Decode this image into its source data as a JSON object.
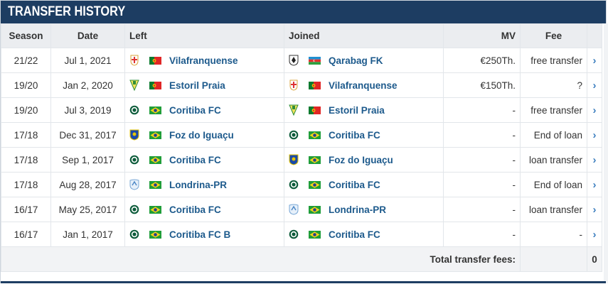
{
  "header": {
    "title": "TRANSFER HISTORY"
  },
  "columns": {
    "season": "Season",
    "date": "Date",
    "left": "Left",
    "joined": "Joined",
    "mv": "MV",
    "fee": "Fee"
  },
  "rows": [
    {
      "season": "21/22",
      "date": "Jul 1, 2021",
      "left": {
        "name": "Vilafranquense",
        "flag": "portugal",
        "crest": "vilafranquense-crest"
      },
      "joined": {
        "name": "Qarabag FK",
        "flag": "azerbaijan",
        "crest": "qarabag-crest"
      },
      "mv": "€250Th.",
      "fee": "free transfer"
    },
    {
      "season": "19/20",
      "date": "Jan 2, 2020",
      "left": {
        "name": "Estoril Praia",
        "flag": "portugal",
        "crest": "estoril-crest"
      },
      "joined": {
        "name": "Vilafranquense",
        "flag": "portugal",
        "crest": "vilafranquense-crest"
      },
      "mv": "€150Th.",
      "fee": "?"
    },
    {
      "season": "19/20",
      "date": "Jul 3, 2019",
      "left": {
        "name": "Coritiba FC",
        "flag": "brazil",
        "crest": "coritiba-crest"
      },
      "joined": {
        "name": "Estoril Praia",
        "flag": "portugal",
        "crest": "estoril-crest"
      },
      "mv": "-",
      "fee": "free transfer"
    },
    {
      "season": "17/18",
      "date": "Dec 31, 2017",
      "left": {
        "name": "Foz do Iguaçu",
        "flag": "brazil",
        "crest": "foz-crest"
      },
      "joined": {
        "name": "Coritiba FC",
        "flag": "brazil",
        "crest": "coritiba-crest"
      },
      "mv": "-",
      "fee": "End of loan"
    },
    {
      "season": "17/18",
      "date": "Sep 1, 2017",
      "left": {
        "name": "Coritiba FC",
        "flag": "brazil",
        "crest": "coritiba-crest"
      },
      "joined": {
        "name": "Foz do Iguaçu",
        "flag": "brazil",
        "crest": "foz-crest"
      },
      "mv": "-",
      "fee": "loan transfer"
    },
    {
      "season": "17/18",
      "date": "Aug 28, 2017",
      "left": {
        "name": "Londrina-PR",
        "flag": "brazil",
        "crest": "londrina-crest"
      },
      "joined": {
        "name": "Coritiba FC",
        "flag": "brazil",
        "crest": "coritiba-crest"
      },
      "mv": "-",
      "fee": "End of loan"
    },
    {
      "season": "16/17",
      "date": "May 25, 2017",
      "left": {
        "name": "Coritiba FC",
        "flag": "brazil",
        "crest": "coritiba-crest"
      },
      "joined": {
        "name": "Londrina-PR",
        "flag": "brazil",
        "crest": "londrina-crest"
      },
      "mv": "-",
      "fee": "loan transfer"
    },
    {
      "season": "16/17",
      "date": "Jan 1, 2017",
      "left": {
        "name": "Coritiba FC B",
        "flag": "brazil",
        "crest": "coritiba-crest"
      },
      "joined": {
        "name": "Coritiba FC",
        "flag": "brazil",
        "crest": "coritiba-crest"
      },
      "mv": "-",
      "fee": "-"
    }
  ],
  "footer": {
    "label": "Total transfer fees:",
    "value": "0"
  },
  "icons": {
    "row_action": "chevron-right-icon"
  },
  "colors": {
    "header_bg": "#1d3d62",
    "link": "#1d5a8c",
    "chevron": "#3d7fbf",
    "table_head_bg": "#ebedf0"
  }
}
